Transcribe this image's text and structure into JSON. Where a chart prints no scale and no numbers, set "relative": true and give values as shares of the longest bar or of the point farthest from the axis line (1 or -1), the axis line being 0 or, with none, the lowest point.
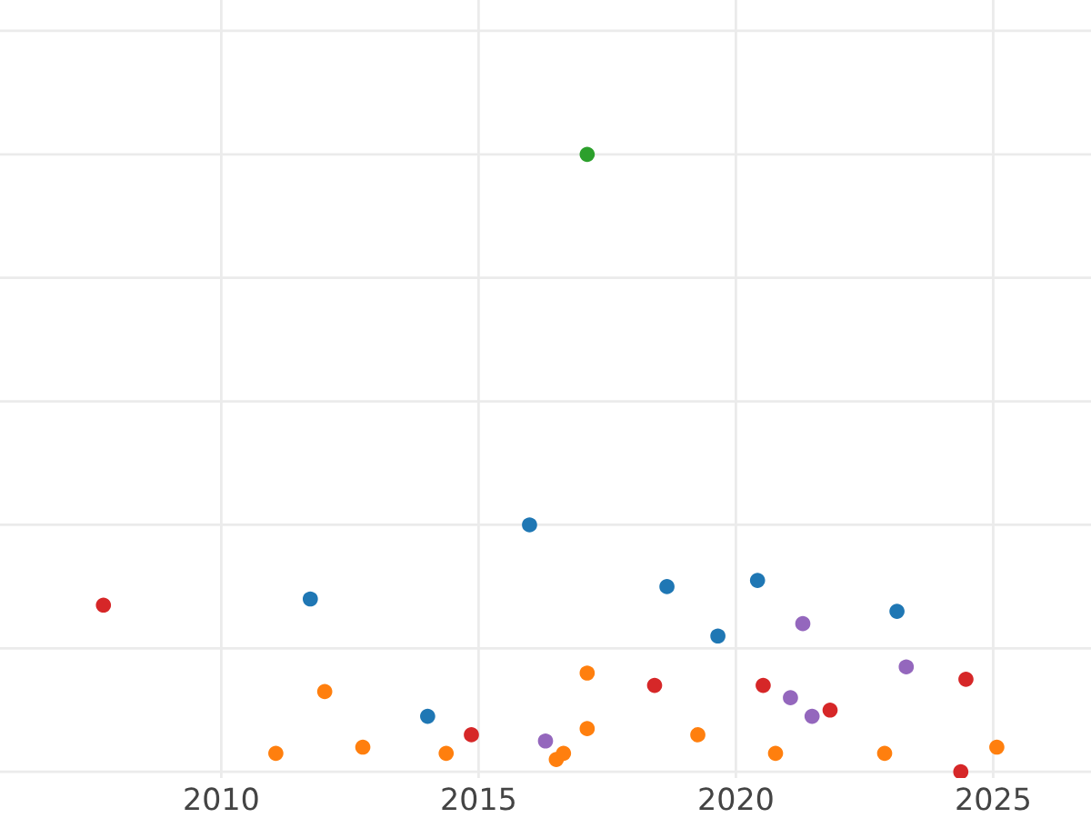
{
  "chart_data": {
    "type": "scatter",
    "relative": true,
    "grid": true,
    "marker": "circle",
    "legend": false,
    "tick_labels": "x",
    "xlim": [
      2005.7,
      2026.9
    ],
    "xticks": [
      2010,
      2015,
      2020,
      2025
    ],
    "series": [
      {
        "color": "#d62728",
        "x": [
          2007.71,
          2014.86,
          2018.42,
          2020.53,
          2021.83,
          2024.47,
          2024.37
        ],
        "values": [
          0.27,
          0.06,
          0.14,
          0.14,
          0.1,
          0.15,
          0
        ]
      },
      {
        "color": "#1f77b4",
        "x": [
          2011.73,
          2014.01,
          2015.99,
          2018.66,
          2019.65,
          2020.42,
          2023.13
        ],
        "values": [
          0.28,
          0.09,
          0.4,
          0.3,
          0.22,
          0.31,
          0.26
        ]
      },
      {
        "color": "#2ca02c",
        "x": [
          2017.11
        ],
        "values": [
          1
        ]
      },
      {
        "color": "#ff7f0e",
        "x": [
          2011.06,
          2012.01,
          2012.75,
          2014.37,
          2016.51,
          2016.65,
          2017.11,
          2017.11,
          2019.26,
          2020.77,
          2022.89,
          2025.07
        ],
        "values": [
          0.03,
          0.13,
          0.04,
          0.03,
          0.02,
          0.03,
          0.16,
          0.07,
          0.06,
          0.03,
          0.03,
          0.04
        ]
      },
      {
        "color": "#9467bd",
        "x": [
          2016.3,
          2021.3,
          2021.06,
          2021.48,
          2023.31
        ],
        "values": [
          0.05,
          0.24,
          0.12,
          0.09,
          0.17
        ]
      }
    ]
  }
}
